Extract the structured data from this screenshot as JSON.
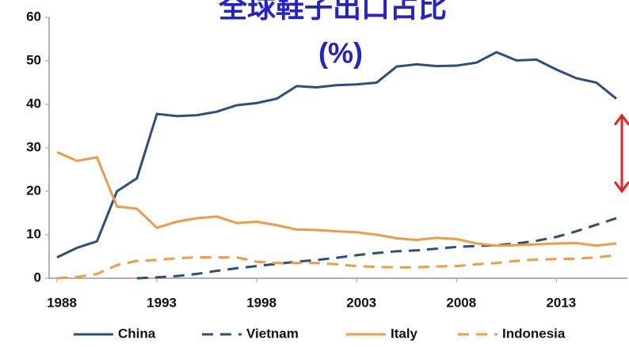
{
  "chart_data": {
    "type": "line",
    "title": "全球鞋子出口占比",
    "subtitle": "(%)",
    "x": [
      1988,
      1989,
      1990,
      1991,
      1992,
      1993,
      1994,
      1995,
      1996,
      1997,
      1998,
      1999,
      2000,
      2001,
      2002,
      2003,
      2004,
      2005,
      2006,
      2007,
      2008,
      2009,
      2010,
      2011,
      2012,
      2013,
      2014,
      2015,
      2016
    ],
    "series": [
      {
        "name": "China",
        "color": "#2b4f7e",
        "dash": "solid",
        "values": [
          4.8,
          7,
          8.5,
          20,
          23,
          37.8,
          37.3,
          37.5,
          38.3,
          39.8,
          40.3,
          41.3,
          44.2,
          43.9,
          44.4,
          44.6,
          45,
          48.7,
          49.2,
          48.8,
          48.9,
          49.6,
          52,
          50.1,
          50.3,
          48,
          46,
          45,
          41.3
        ]
      },
      {
        "name": "Vietnam",
        "color": "#2b4f7e",
        "dash": "dashed",
        "values": [
          null,
          null,
          null,
          null,
          0,
          0.2,
          0.5,
          1,
          1.7,
          2.3,
          2.8,
          3.3,
          3.8,
          4.2,
          4.7,
          5.3,
          5.8,
          6.2,
          6.4,
          6.8,
          7.2,
          7.4,
          7.6,
          8,
          8.6,
          9.5,
          10.8,
          12.3,
          13.8
        ]
      },
      {
        "name": "Italy",
        "color": "#f39a45",
        "dash": "solid",
        "values": [
          29,
          27,
          27.8,
          16.5,
          16,
          11.6,
          13,
          13.8,
          14.2,
          12.7,
          13,
          12.2,
          11.2,
          11.1,
          10.8,
          10.6,
          10,
          9.2,
          8.8,
          9.3,
          9,
          8,
          7.5,
          7.6,
          7.8,
          8,
          8.1,
          7.5,
          8
        ]
      },
      {
        "name": "Indonesia",
        "color": "#f39a45",
        "dash": "dashed",
        "values": [
          0,
          0.3,
          1,
          3,
          4,
          4.2,
          4.6,
          4.8,
          4.8,
          4.8,
          3.8,
          3.5,
          3.5,
          3.5,
          3.2,
          2.8,
          2.6,
          2.5,
          2.5,
          2.7,
          2.8,
          3.2,
          3.5,
          4,
          4.3,
          4.4,
          4.5,
          4.8,
          5.3
        ]
      }
    ],
    "xlim": [
      1988,
      2016
    ],
    "xticks": [
      1988,
      1993,
      1998,
      2003,
      2008,
      2013
    ],
    "ylim": [
      0,
      60
    ],
    "yticks": [
      0,
      10,
      20,
      30,
      40,
      50,
      60
    ],
    "legend": "bottom"
  }
}
